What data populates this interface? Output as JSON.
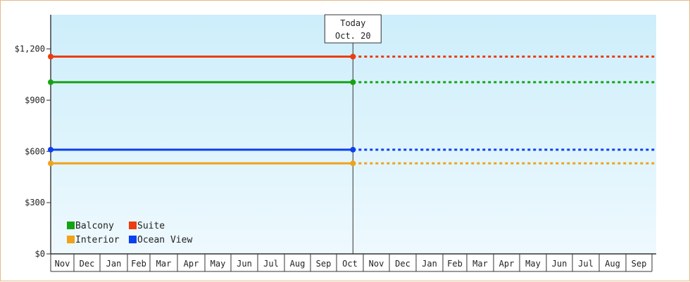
{
  "chart_data": {
    "type": "line",
    "title": "",
    "xlabel": "",
    "ylabel": "",
    "ylim": [
      0,
      1400
    ],
    "yticks": [
      0,
      300,
      600,
      900,
      1200
    ],
    "ytick_labels": [
      "$0",
      "$300",
      "$600",
      "$900",
      "$1,200"
    ],
    "x_months": [
      "Nov",
      "Dec",
      "Jan",
      "Feb",
      "Mar",
      "Apr",
      "May",
      "Jun",
      "Jul",
      "Aug",
      "Sep",
      "Oct",
      "Nov",
      "Dec",
      "Jan",
      "Feb",
      "Mar",
      "Apr",
      "May",
      "Jun",
      "Jul",
      "Aug",
      "Sep"
    ],
    "today": {
      "label_line1": "Today",
      "label_line2": "Oct. 20",
      "month_index": 11
    },
    "series": [
      {
        "name": "Suite",
        "color": "#ee3b0f",
        "start_value": 1155,
        "today_value": 1155,
        "projection_value": 1155
      },
      {
        "name": "Balcony",
        "color": "#13a313",
        "start_value": 1005,
        "today_value": 1005,
        "projection_value": 1005
      },
      {
        "name": "Ocean View",
        "color": "#0b3ff2",
        "start_value": 610,
        "today_value": 610,
        "projection_value": 610
      },
      {
        "name": "Interior",
        "color": "#f0a21a",
        "start_value": 530,
        "today_value": 530,
        "projection_value": 530
      }
    ],
    "legend": {
      "placement": "bottom-left",
      "order": [
        "Balcony",
        "Suite",
        "Interior",
        "Ocean View"
      ]
    },
    "grid": false,
    "background_gradient": [
      "#cdeefb",
      "#eef9fe"
    ]
  }
}
